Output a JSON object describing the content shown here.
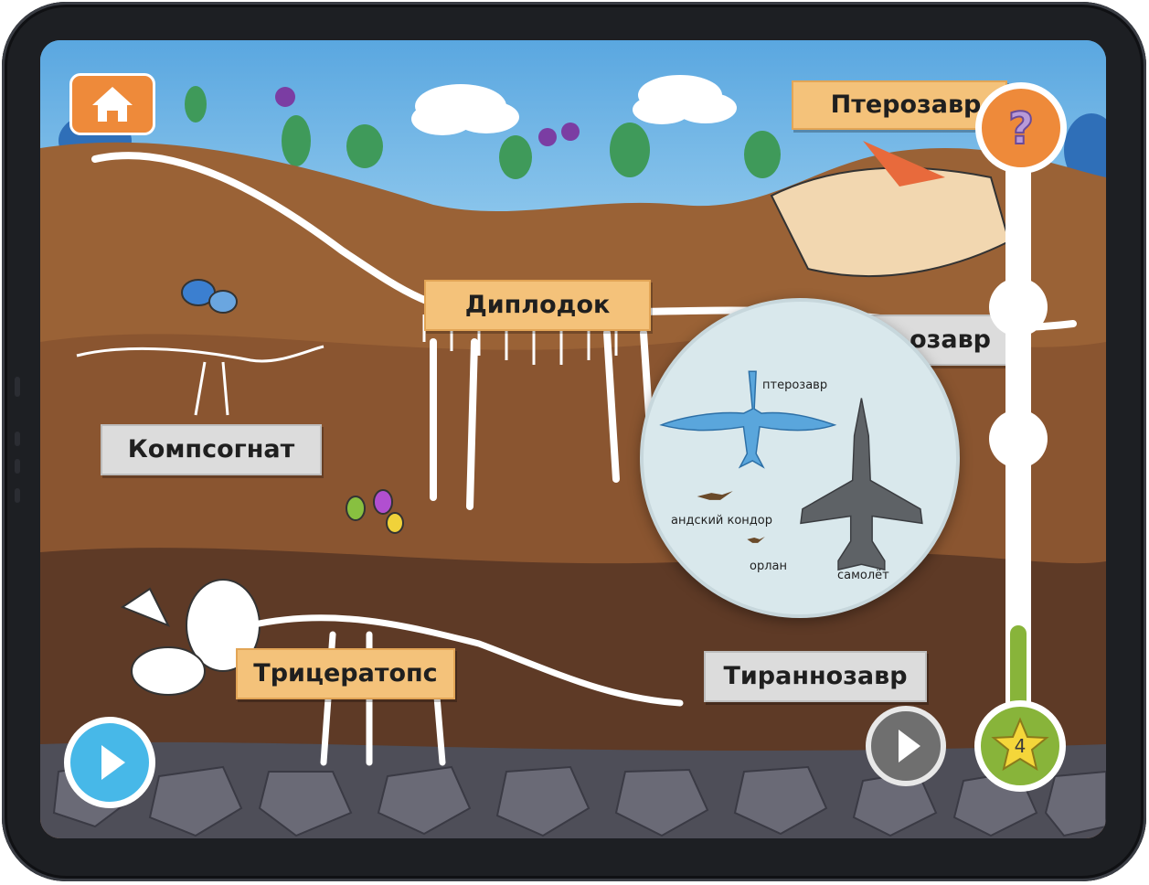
{
  "labels": {
    "pterosaur": "Птерозавр",
    "diplodocus": "Диплодок",
    "compsognathus": "Компсогнат",
    "triceratops": "Трицератопс",
    "tyrannosaurus": "Тираннозавр",
    "hidden_partial": "озавр"
  },
  "magnifier": {
    "pterosaur": "птерозавр",
    "andean_condor": "андский кондор",
    "eagle": "орлан",
    "airplane": "самолёт"
  },
  "progress": {
    "stars": "4",
    "fill_fraction": 0.18
  },
  "icons": {
    "home": "home-icon",
    "help": "question-mark-icon",
    "play": "play-icon",
    "star": "star-icon"
  },
  "colors": {
    "orange_button": "#ee8a3a",
    "blue_button": "#47b8e8",
    "green_progress": "#88b43a",
    "label_orange": "#f4c27a",
    "label_gray": "#dcdcdc",
    "sky": "#7ab8e6",
    "soil": "#8b5a35"
  }
}
